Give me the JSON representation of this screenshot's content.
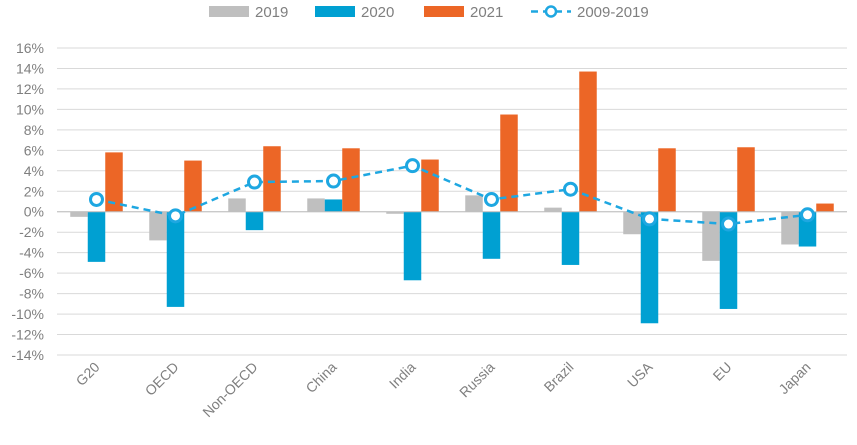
{
  "chart_data": {
    "type": "bar",
    "categories": [
      "G20",
      "OECD",
      "Non-OECD",
      "China",
      "India",
      "Russia",
      "Brazil",
      "USA",
      "EU",
      "Japan"
    ],
    "series": [
      {
        "name": "2019",
        "kind": "bar",
        "color": "#bfbfbf",
        "values": [
          -0.5,
          -2.8,
          1.3,
          1.3,
          -0.2,
          1.6,
          0.4,
          -2.2,
          -4.8,
          -3.2
        ]
      },
      {
        "name": "2020",
        "kind": "bar",
        "color": "#00a0d2",
        "values": [
          -4.9,
          -9.3,
          -1.8,
          1.2,
          -6.7,
          -4.6,
          -5.2,
          -10.9,
          -9.5,
          -3.4
        ]
      },
      {
        "name": "2021",
        "kind": "bar",
        "color": "#ec6626",
        "values": [
          5.8,
          5.0,
          6.4,
          6.2,
          5.1,
          9.5,
          13.7,
          6.2,
          6.3,
          0.8
        ]
      },
      {
        "name": "2009-2019",
        "kind": "line",
        "color": "#1ea7e1",
        "values": [
          1.2,
          -0.4,
          2.9,
          3.0,
          4.5,
          1.2,
          2.2,
          -0.7,
          -1.2,
          -0.3
        ]
      }
    ],
    "ylim": [
      -14,
      16
    ],
    "ytick_step": 2,
    "ytick_format": "percent",
    "grid": true,
    "legend_position": "top",
    "title": "",
    "xlabel": "",
    "ylabel": ""
  }
}
